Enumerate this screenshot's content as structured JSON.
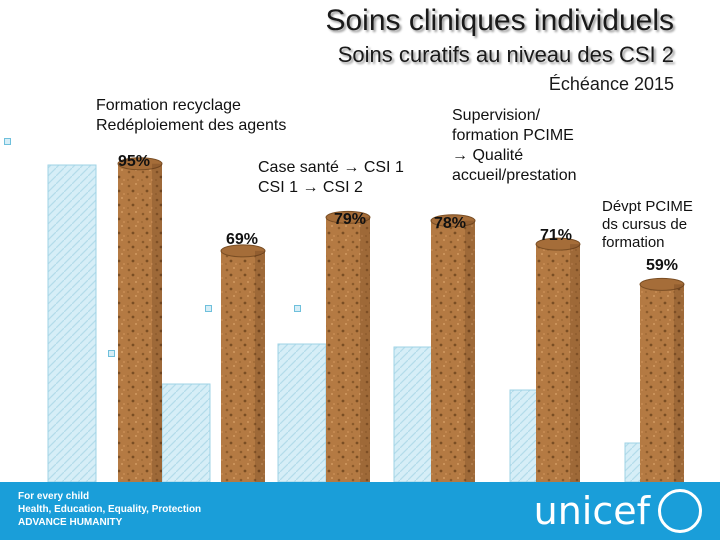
{
  "title": "Soins cliniques individuels",
  "subtitle": "Soins curatifs au niveau des CSI 2",
  "deadline": "Échéance 2015",
  "annotations": {
    "formation": "Formation recyclage\nRedéploiement des agents",
    "case_sante": "Case santé → CSI 1\nCSI 1 → CSI 2",
    "supervision": "Supervision/\nformation PCIME\n→ Qualité\naccueil/prestation",
    "devpt": "Dévpt PCIME\nds cursus de\nformation"
  },
  "footer": {
    "tagline": "For every child\nHealth, Education, Equality, Protection\nADVANCE HUMANITY",
    "logo": "unicef"
  },
  "colors": {
    "cork": "#b47a43",
    "cork_dark": "#8a5a2b",
    "light_bar": "#d6eef7",
    "footer": "#1a9ed9"
  },
  "chart_data": {
    "type": "bar",
    "ylim": [
      0,
      100
    ],
    "series": [
      {
        "values": [
          95,
          69,
          79,
          78,
          71,
          59
        ],
        "labels": [
          "95%",
          "69%",
          "79%",
          "78%",
          "71%",
          "59%"
        ]
      }
    ]
  }
}
